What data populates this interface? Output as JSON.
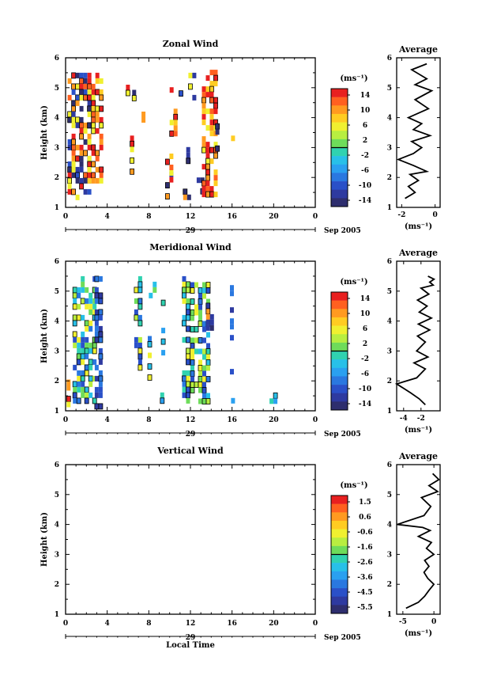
{
  "chart_data": [
    {
      "type": "heatmap",
      "title": "Zonal Wind",
      "ylabel": "Height (km)",
      "ylim": [
        1,
        6
      ],
      "yticks": [
        "1",
        "2",
        "3",
        "4",
        "5",
        "6"
      ],
      "xlim": [
        0,
        24
      ],
      "xticks": [
        "0",
        "4",
        "8",
        "12",
        "16",
        "20",
        "0"
      ],
      "date_day": "29",
      "date_label": "Sep 2005",
      "colorbar": {
        "unit": "(ms⁻¹)",
        "labels": [
          "14",
          "10",
          "6",
          "2",
          "-2",
          "-6",
          "-10",
          "-14"
        ],
        "colors": [
          "#e82020",
          "#ff6020",
          "#ff9a20",
          "#ffcc22",
          "#f0f030",
          "#b8ee40",
          "#6edc5a",
          "#30d2b0",
          "#28c0e8",
          "#2aa0f0",
          "#2a78e0",
          "#2a50c8",
          "#2e3aa0",
          "#2e2e6e"
        ]
      },
      "average": {
        "title": "Average",
        "xlabel": "(ms⁻¹)",
        "xlim": [
          -2.3,
          0.3
        ],
        "xticks": [
          "-2",
          "0"
        ],
        "ylim": [
          1,
          6
        ],
        "yticks": [
          "1",
          "2",
          "3",
          "4",
          "5",
          "6"
        ],
        "x": [
          -1.8,
          -1.2,
          -1.6,
          -1.0,
          -1.5,
          -0.5,
          -1.3,
          -2.2,
          -1.3,
          -0.8,
          -1.4,
          -0.3,
          -1.3,
          -0.8,
          -1.6,
          -0.4,
          -1.2,
          -0.2,
          -1.2,
          -0.5,
          -1.4,
          -0.5
        ],
        "y": [
          1.3,
          1.5,
          1.7,
          1.9,
          2.1,
          2.2,
          2.4,
          2.6,
          2.8,
          3.0,
          3.2,
          3.4,
          3.6,
          3.8,
          4.0,
          4.3,
          4.6,
          4.9,
          5.1,
          5.3,
          5.6,
          5.8
        ]
      }
    },
    {
      "type": "heatmap",
      "title": "Meridional Wind",
      "ylabel": "Height (km)",
      "ylim": [
        1,
        6
      ],
      "yticks": [
        "1",
        "2",
        "3",
        "4",
        "5",
        "6"
      ],
      "xlim": [
        0,
        24
      ],
      "xticks": [
        "0",
        "4",
        "8",
        "12",
        "16",
        "20",
        "0"
      ],
      "date_day": "29",
      "date_label": "Sep 2005",
      "colorbar": {
        "unit": "(ms⁻¹)",
        "labels": [
          "14",
          "10",
          "6",
          "2",
          "-2",
          "-6",
          "-10",
          "-14"
        ],
        "colors": [
          "#e82020",
          "#ff6020",
          "#ff9a20",
          "#ffcc22",
          "#f0f030",
          "#b8ee40",
          "#6edc5a",
          "#30d2b0",
          "#28c0e8",
          "#2aa0f0",
          "#2a78e0",
          "#2a50c8",
          "#2e3aa0",
          "#2e2e6e"
        ]
      },
      "average": {
        "title": "Average",
        "xlabel": "(ms⁻¹)",
        "xlim": [
          -4.8,
          0.2
        ],
        "xticks": [
          "-4",
          "-2"
        ],
        "ylim": [
          1,
          6
        ],
        "yticks": [
          "1",
          "2",
          "3",
          "4",
          "5",
          "6"
        ],
        "x": [
          -1.5,
          -2.2,
          -3.2,
          -4.8,
          -2.5,
          -1.5,
          -2.8,
          -1.2,
          -2.5,
          -1.5,
          -2.4,
          -1.0,
          -2.3,
          -0.8,
          -2.2,
          -1.3,
          -2.4,
          -1.1,
          -2.0,
          -0.6,
          -1.0,
          -0.5,
          -1.2
        ],
        "y": [
          1.2,
          1.4,
          1.6,
          1.9,
          2.1,
          2.4,
          2.6,
          2.8,
          3.0,
          3.3,
          3.5,
          3.7,
          3.9,
          4.1,
          4.3,
          4.5,
          4.7,
          4.9,
          5.1,
          5.2,
          5.3,
          5.4,
          5.5
        ]
      }
    },
    {
      "type": "heatmap",
      "title": "Vertical Wind",
      "ylabel": "Height (km)",
      "ylim": [
        1,
        6
      ],
      "yticks": [
        "1",
        "2",
        "3",
        "4",
        "5",
        "6"
      ],
      "xlim": [
        0,
        24
      ],
      "xticks": [
        "0",
        "4",
        "8",
        "12",
        "16",
        "20",
        "0"
      ],
      "date_day": "29",
      "date_label": "Sep 2005",
      "xlabel": "Local Time",
      "colorbar": {
        "unit": "(ms⁻¹)",
        "labels": [
          "1.5",
          "0.6",
          "-0.6",
          "-1.6",
          "-2.6",
          "-3.6",
          "-4.5",
          "-5.5"
        ],
        "colors": [
          "#e82020",
          "#ff6020",
          "#ff9a20",
          "#ffcc22",
          "#f0f030",
          "#b8ee40",
          "#6edc5a",
          "#30d2b0",
          "#28c0e8",
          "#2aa0f0",
          "#2a78e0",
          "#2a50c8",
          "#2e3aa0",
          "#2e2e6e"
        ]
      },
      "average": {
        "title": "Average",
        "xlabel": "(ms⁻¹)",
        "xlim": [
          -6,
          1
        ],
        "xticks": [
          "-5",
          "0"
        ],
        "ylim": [
          1,
          6
        ],
        "yticks": [
          "1",
          "2",
          "3",
          "4",
          "5",
          "6"
        ],
        "x": [
          -4.5,
          -2.5,
          -1.5,
          -0.8,
          0.0,
          -1.0,
          -1.6,
          -0.8,
          -1.5,
          0.0,
          -1.2,
          -0.4,
          -2.5,
          -0.6,
          -1.8,
          -5.9,
          -1.6,
          -0.5,
          -2.0,
          0.6,
          -0.8,
          0.8,
          -0.2
        ],
        "y": [
          1.2,
          1.4,
          1.6,
          1.8,
          2.0,
          2.2,
          2.4,
          2.6,
          2.8,
          3.0,
          3.2,
          3.4,
          3.6,
          3.8,
          3.9,
          4.0,
          4.3,
          4.6,
          4.9,
          5.1,
          5.3,
          5.5,
          5.7
        ]
      }
    }
  ]
}
